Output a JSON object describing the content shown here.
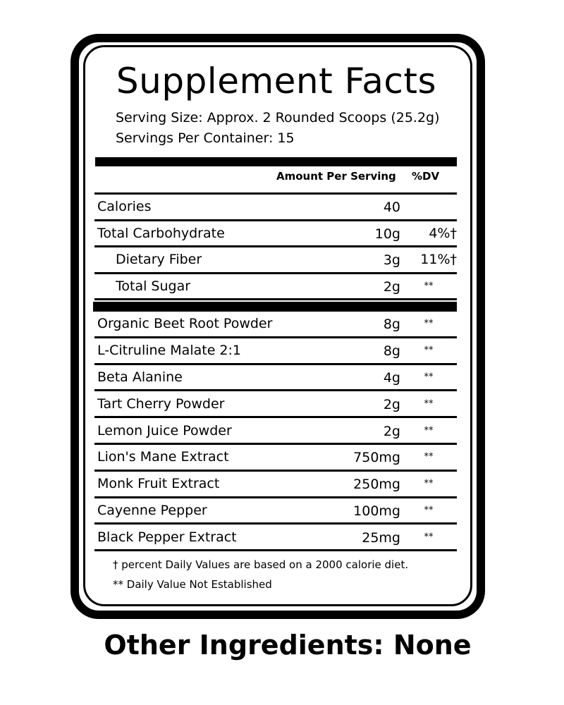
{
  "title": "Supplement Facts",
  "serving_size": "Serving Size: Approx. 2 Rounded Scoops (25.2g)",
  "servings_per_container": "Servings Per Container: 15",
  "header": {
    "amount": "Amount Per Serving",
    "dv": "%DV"
  },
  "nutrients": [
    {
      "name": "Calories",
      "amount": "40",
      "dv": ""
    },
    {
      "name": "Total Carbohydrate",
      "amount": "10g",
      "dv": "4%†"
    },
    {
      "name": "Dietary Fiber",
      "amount": "3g",
      "dv": "11%†",
      "indent": true
    },
    {
      "name": "Total Sugar",
      "amount": "2g",
      "dv": "**",
      "indent": true
    }
  ],
  "ingredients": [
    {
      "name": "Organic Beet Root Powder",
      "amount": "8g",
      "dv": "**"
    },
    {
      "name": "L-Citruline Malate 2:1",
      "amount": "8g",
      "dv": "**"
    },
    {
      "name": "Beta Alanine",
      "amount": "4g",
      "dv": "**"
    },
    {
      "name": "Tart Cherry Powder",
      "amount": "2g",
      "dv": "**"
    },
    {
      "name": "Lemon Juice Powder",
      "amount": "2g",
      "dv": "**"
    },
    {
      "name": "Lion's Mane Extract",
      "amount": "750mg",
      "dv": "**"
    },
    {
      "name": "Monk Fruit Extract",
      "amount": "250mg",
      "dv": "**"
    },
    {
      "name": "Cayenne Pepper",
      "amount": "100mg",
      "dv": "**"
    },
    {
      "name": "Black Pepper Extract",
      "amount": "25mg",
      "dv": "**"
    }
  ],
  "footnotes": [
    "† percent Daily Values are based on a 2000 calorie diet.",
    "** Daily Value Not Established"
  ],
  "other_ingredients": "Other Ingredients: None"
}
